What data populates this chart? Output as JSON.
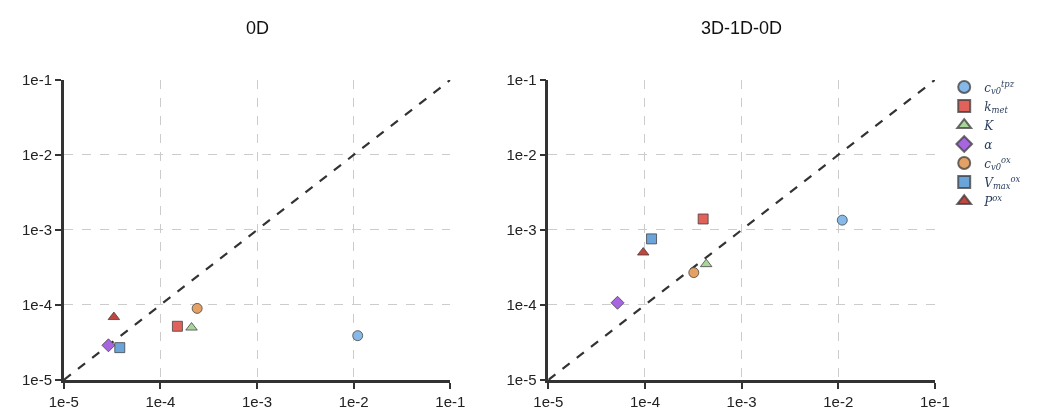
{
  "chart_data": [
    {
      "type": "scatter",
      "title": "0D",
      "log": "xy",
      "grid": true,
      "legend": "right",
      "xlim": [
        1e-05,
        0.1
      ],
      "xticks": [
        {
          "value": 1e-05,
          "label": "1e-5"
        },
        {
          "value": 0.0001,
          "label": "1e-4"
        },
        {
          "value": 0.001,
          "label": "1e-3"
        },
        {
          "value": 0.01,
          "label": "1e-2"
        },
        {
          "value": 0.1,
          "label": "1e-1"
        }
      ],
      "ylim": [
        1e-05,
        0.1
      ],
      "yticks": [
        {
          "value": 1e-05,
          "label": "1e-5"
        },
        {
          "value": 0.0001,
          "label": "1e-4"
        },
        {
          "value": 0.001,
          "label": "1e-3"
        },
        {
          "value": 0.01,
          "label": "1e-2"
        },
        {
          "value": 0.1,
          "label": "1e-1"
        }
      ],
      "series": [
        {
          "type": "line",
          "color": "#333333",
          "line_style": "dashed",
          "marker": "none",
          "x": [
            1e-05,
            0.1
          ],
          "values": [
            1e-05,
            0.1
          ]
        },
        {
          "name": "c$_{v0}$$^{tpz}$",
          "color": "#86b9e8",
          "marker": "circle",
          "x": [
            0.011
          ],
          "values": [
            3.9e-05
          ]
        },
        {
          "name": "k$_{met}$",
          "color": "#e0625a",
          "marker": "square",
          "x": [
            0.00015
          ],
          "values": [
            5.2e-05
          ]
        },
        {
          "name": "K",
          "color": "#a8d59a",
          "marker": "triangle",
          "x": [
            0.00021
          ],
          "values": [
            5e-05
          ]
        },
        {
          "name": "α",
          "color": "#a766e0",
          "marker": "diamond",
          "x": [
            2.9e-05
          ],
          "values": [
            2.9e-05
          ]
        },
        {
          "name": "c$_{v0}$$^{ox}$",
          "color": "#e3a165",
          "marker": "circle",
          "x": [
            0.00024
          ],
          "values": [
            9e-05
          ]
        },
        {
          "name": "V$_{max}$$^{ox}$",
          "color": "#6aa4d9",
          "marker": "square",
          "x": [
            3.8e-05
          ],
          "values": [
            2.7e-05
          ]
        },
        {
          "name": "P$^{ox}$",
          "color": "#c0473f",
          "marker": "triangle",
          "x": [
            3.3e-05
          ],
          "values": [
            6.9e-05
          ]
        }
      ]
    },
    {
      "type": "scatter",
      "title": "3D-1D-0D",
      "log": "xy",
      "grid": true,
      "legend": "right",
      "xlim": [
        1e-05,
        0.1
      ],
      "xticks": [
        {
          "value": 1e-05,
          "label": "1e-5"
        },
        {
          "value": 0.0001,
          "label": "1e-4"
        },
        {
          "value": 0.001,
          "label": "1e-3"
        },
        {
          "value": 0.01,
          "label": "1e-2"
        },
        {
          "value": 0.1,
          "label": "1e-1"
        }
      ],
      "ylim": [
        1e-05,
        0.1
      ],
      "yticks": [
        {
          "value": 1e-05,
          "label": "1e-5"
        },
        {
          "value": 0.0001,
          "label": "1e-4"
        },
        {
          "value": 0.001,
          "label": "1e-3"
        },
        {
          "value": 0.01,
          "label": "1e-2"
        },
        {
          "value": 0.1,
          "label": "1e-1"
        }
      ],
      "series": [
        {
          "type": "line",
          "color": "#333333",
          "line_style": "dashed",
          "marker": "none",
          "x": [
            1e-05,
            0.1
          ],
          "values": [
            1e-05,
            0.1
          ]
        },
        {
          "name": "c$_{v0}$$^{tpz}$",
          "color": "#86b9e8",
          "marker": "circle",
          "x": [
            0.011
          ],
          "values": [
            0.00135
          ]
        },
        {
          "name": "k$_{met}$",
          "color": "#e0625a",
          "marker": "square",
          "x": [
            0.0004
          ],
          "values": [
            0.0014
          ]
        },
        {
          "name": "K",
          "color": "#a8d59a",
          "marker": "triangle",
          "x": [
            0.00043
          ],
          "values": [
            0.00035
          ]
        },
        {
          "name": "α",
          "color": "#a766e0",
          "marker": "diamond",
          "x": [
            5.2e-05
          ],
          "values": [
            0.000107
          ]
        },
        {
          "name": "c$_{v0}$$^{ox}$",
          "color": "#e3a165",
          "marker": "circle",
          "x": [
            0.00032
          ],
          "values": [
            0.00027
          ]
        },
        {
          "name": "V$_{max}$$^{ox}$",
          "color": "#6aa4d9",
          "marker": "square",
          "x": [
            0.000117
          ],
          "values": [
            0.00076
          ]
        },
        {
          "name": "P$^{ox}$",
          "color": "#c0473f",
          "marker": "triangle",
          "x": [
            9.6e-05
          ],
          "values": [
            0.0005
          ]
        }
      ]
    }
  ]
}
